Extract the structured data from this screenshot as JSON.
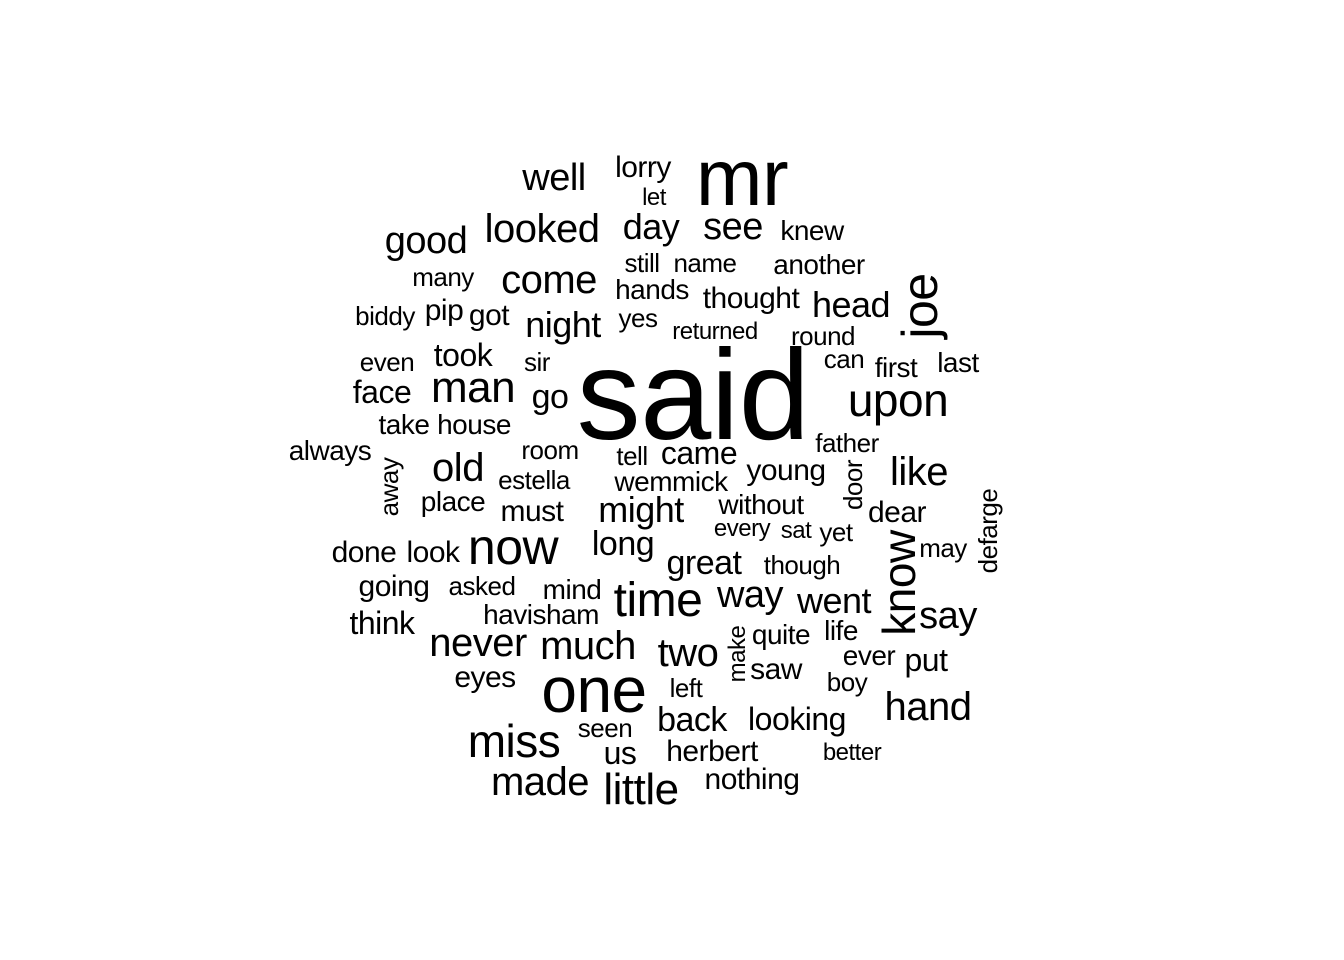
{
  "word_cloud": {
    "words": [
      "said",
      "mr",
      "one",
      "joe",
      "now",
      "know",
      "time",
      "upon",
      "man",
      "miss",
      "little",
      "made",
      "come",
      "much",
      "never",
      "looked",
      "like",
      "old",
      "two",
      "hand",
      "good",
      "way",
      "say",
      "went",
      "night",
      "head",
      "might",
      "great",
      "day",
      "see",
      "well",
      "back",
      "looking",
      "long",
      "face",
      "took",
      "go",
      "came",
      "thought",
      "young",
      "dear",
      "put",
      "nothing",
      "herbert",
      "us",
      "eyes",
      "think",
      "going",
      "done",
      "look",
      "house",
      "take",
      "must",
      "place",
      "estella",
      "wemmick",
      "without",
      "saw",
      "quite",
      "life",
      "ever",
      "mind",
      "havisham",
      "asked",
      "seen",
      "left",
      "boy",
      "better",
      "though",
      "every",
      "sat",
      "yet",
      "may",
      "defarge",
      "door",
      "father",
      "tell",
      "room",
      "always",
      "away",
      "even",
      "sir",
      "can",
      "first",
      "last",
      "round",
      "returned",
      "yes",
      "pip",
      "got",
      "biddy",
      "many",
      "still",
      "name",
      "hands",
      "another",
      "knew",
      "lorry",
      "let",
      "make"
    ]
  }
}
